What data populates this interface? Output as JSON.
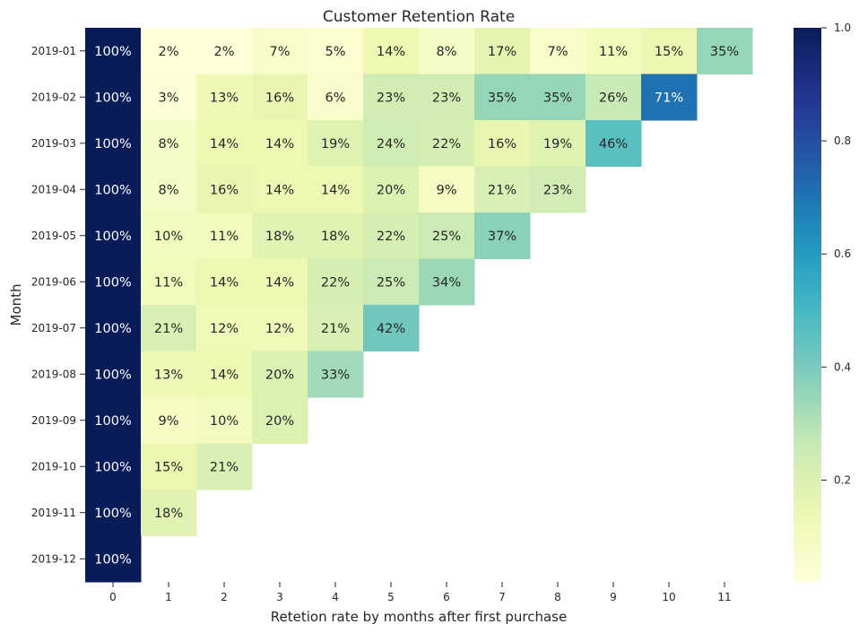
{
  "chart_data": {
    "type": "heatmap",
    "title": "Customer Retention Rate",
    "xlabel": "Retetion rate by months after first purchase",
    "ylabel": "Month",
    "x_categories": [
      "0",
      "1",
      "2",
      "3",
      "4",
      "5",
      "6",
      "7",
      "8",
      "9",
      "10",
      "11"
    ],
    "y_categories": [
      "2019-01",
      "2019-02",
      "2019-03",
      "2019-04",
      "2019-05",
      "2019-06",
      "2019-07",
      "2019-08",
      "2019-09",
      "2019-10",
      "2019-11",
      "2019-12"
    ],
    "values": [
      [
        1.0,
        0.02,
        0.02,
        0.07,
        0.05,
        0.14,
        0.08,
        0.17,
        0.07,
        0.11,
        0.15,
        0.35
      ],
      [
        1.0,
        0.03,
        0.13,
        0.16,
        0.06,
        0.23,
        0.23,
        0.35,
        0.35,
        0.26,
        0.71,
        null
      ],
      [
        1.0,
        0.08,
        0.14,
        0.14,
        0.19,
        0.24,
        0.22,
        0.16,
        0.19,
        0.46,
        null,
        null
      ],
      [
        1.0,
        0.08,
        0.16,
        0.14,
        0.14,
        0.2,
        0.09,
        0.21,
        0.23,
        null,
        null,
        null
      ],
      [
        1.0,
        0.1,
        0.11,
        0.18,
        0.18,
        0.22,
        0.25,
        0.37,
        null,
        null,
        null,
        null
      ],
      [
        1.0,
        0.11,
        0.14,
        0.14,
        0.22,
        0.25,
        0.34,
        null,
        null,
        null,
        null,
        null
      ],
      [
        1.0,
        0.21,
        0.12,
        0.12,
        0.21,
        0.42,
        null,
        null,
        null,
        null,
        null,
        null
      ],
      [
        1.0,
        0.13,
        0.14,
        0.2,
        0.33,
        null,
        null,
        null,
        null,
        null,
        null,
        null
      ],
      [
        1.0,
        0.09,
        0.1,
        0.2,
        null,
        null,
        null,
        null,
        null,
        null,
        null,
        null
      ],
      [
        1.0,
        0.15,
        0.21,
        null,
        null,
        null,
        null,
        null,
        null,
        null,
        null,
        null
      ],
      [
        1.0,
        0.18,
        null,
        null,
        null,
        null,
        null,
        null,
        null,
        null,
        null,
        null
      ],
      [
        1.0,
        null,
        null,
        null,
        null,
        null,
        null,
        null,
        null,
        null,
        null,
        null
      ]
    ],
    "cell_labels": [
      [
        "100%",
        "2%",
        "2%",
        "7%",
        "5%",
        "14%",
        "8%",
        "17%",
        "7%",
        "11%",
        "15%",
        "35%"
      ],
      [
        "100%",
        "3%",
        "13%",
        "16%",
        "6%",
        "23%",
        "23%",
        "35%",
        "35%",
        "26%",
        "71%",
        ""
      ],
      [
        "100%",
        "8%",
        "14%",
        "14%",
        "19%",
        "24%",
        "22%",
        "16%",
        "19%",
        "46%",
        "",
        ""
      ],
      [
        "100%",
        "8%",
        "16%",
        "14%",
        "14%",
        "20%",
        "9%",
        "21%",
        "23%",
        "",
        "",
        ""
      ],
      [
        "100%",
        "10%",
        "11%",
        "18%",
        "18%",
        "22%",
        "25%",
        "37%",
        "",
        "",
        "",
        ""
      ],
      [
        "100%",
        "11%",
        "14%",
        "14%",
        "22%",
        "25%",
        "34%",
        "",
        "",
        "",
        "",
        ""
      ],
      [
        "100%",
        "21%",
        "12%",
        "12%",
        "21%",
        "42%",
        "",
        "",
        "",
        "",
        "",
        ""
      ],
      [
        "100%",
        "13%",
        "14%",
        "20%",
        "33%",
        "",
        "",
        "",
        "",
        "",
        "",
        ""
      ],
      [
        "100%",
        "9%",
        "10%",
        "20%",
        "",
        "",
        "",
        "",
        "",
        "",
        "",
        ""
      ],
      [
        "100%",
        "15%",
        "21%",
        "",
        "",
        "",
        "",
        "",
        "",
        "",
        "",
        ""
      ],
      [
        "100%",
        "18%",
        "",
        "",
        "",
        "",
        "",
        "",
        "",
        "",
        "",
        ""
      ],
      [
        "100%",
        "",
        "",
        "",
        "",
        "",
        "",
        "",
        "",
        "",
        "",
        ""
      ]
    ],
    "colormap": "YlGnBu",
    "colorbar": {
      "vmin": 0.02,
      "vmax": 1.0,
      "ticks": [
        0.2,
        0.4,
        0.6,
        0.8,
        1.0
      ],
      "tick_labels": [
        "0.2",
        "0.4",
        "0.6",
        "0.8",
        "1.0"
      ]
    },
    "grid": false,
    "legend": "colorbar-right"
  }
}
